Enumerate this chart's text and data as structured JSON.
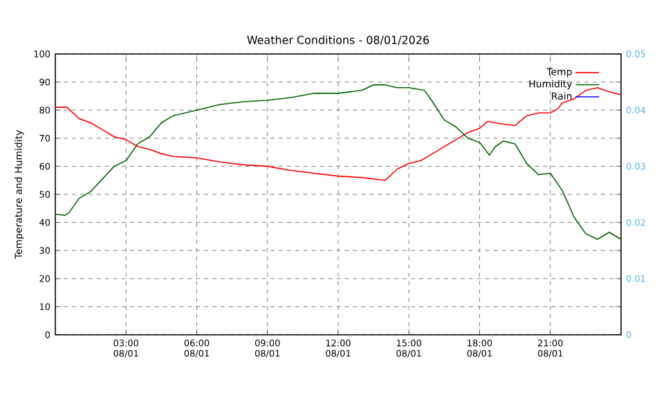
{
  "chart_data": {
    "type": "line",
    "title": "Weather Conditions - 08/01/2026",
    "ylabel": "Temperature and Humidity",
    "xlim": [
      "2026-08-01T00:00",
      "2026-08-02T00:00"
    ],
    "xticks": [
      {
        "value": "2026-08-01T03:00",
        "label": "03:00 08/01"
      },
      {
        "value": "2026-08-01T06:00",
        "label": "06:00 08/01"
      },
      {
        "value": "2026-08-01T09:00",
        "label": "09:00 08/01"
      },
      {
        "value": "2026-08-01T12:00",
        "label": "12:00 08/01"
      },
      {
        "value": "2026-08-01T15:00",
        "label": "15:00 08/01"
      },
      {
        "value": "2026-08-01T18:00",
        "label": "18:00 08/01"
      },
      {
        "value": "2026-08-01T21:00",
        "label": "21:00 08/01"
      }
    ],
    "ylim": [
      0,
      100
    ],
    "yticks": [
      0,
      10,
      20,
      30,
      40,
      50,
      60,
      70,
      80,
      90,
      100
    ],
    "y2lim": [
      0,
      0.05
    ],
    "y2ticks": [
      0,
      0.01,
      0.02,
      0.03,
      0.04,
      0.05
    ],
    "grid": true,
    "legend": "top right",
    "series": [
      {
        "name": "Temp",
        "color": "#ff0000",
        "x": [
          "2026-08-01T00:00",
          "2026-08-01T00:30",
          "2026-08-01T01:00",
          "2026-08-01T01:30",
          "2026-08-01T02:00",
          "2026-08-01T02:30",
          "2026-08-01T03:00",
          "2026-08-01T03:30",
          "2026-08-01T04:00",
          "2026-08-01T04:30",
          "2026-08-01T05:00",
          "2026-08-01T06:00",
          "2026-08-01T07:00",
          "2026-08-01T08:00",
          "2026-08-01T09:00",
          "2026-08-01T10:00",
          "2026-08-01T11:00",
          "2026-08-01T12:00",
          "2026-08-01T13:00",
          "2026-08-01T14:00",
          "2026-08-01T14:30",
          "2026-08-01T15:00",
          "2026-08-01T15:30",
          "2026-08-01T16:00",
          "2026-08-01T16:30",
          "2026-08-01T17:00",
          "2026-08-01T17:30",
          "2026-08-01T18:00",
          "2026-08-01T18:20",
          "2026-08-01T19:00",
          "2026-08-01T19:30",
          "2026-08-01T20:00",
          "2026-08-01T20:30",
          "2026-08-01T21:00",
          "2026-08-01T21:20",
          "2026-08-01T21:30",
          "2026-08-01T22:00",
          "2026-08-01T22:30",
          "2026-08-01T23:00",
          "2026-08-01T23:30",
          "2026-08-02T00:00"
        ],
        "values": [
          81,
          81,
          77,
          75.5,
          73,
          70.5,
          69.5,
          67,
          66,
          64.5,
          63.5,
          63,
          61.5,
          60.5,
          60,
          58.5,
          57.5,
          56.5,
          56,
          55,
          59,
          61,
          62,
          64.5,
          67,
          69.5,
          72,
          73.5,
          76,
          75,
          74.5,
          78,
          79,
          79,
          80.5,
          82.5,
          84,
          87,
          88,
          86.5,
          85.5
        ]
      },
      {
        "name": "Humidity",
        "color": "#006400",
        "x": [
          "2026-08-01T00:00",
          "2026-08-01T00:25",
          "2026-08-01T00:35",
          "2026-08-01T01:00",
          "2026-08-01T01:30",
          "2026-08-01T02:00",
          "2026-08-01T02:30",
          "2026-08-01T03:00",
          "2026-08-01T03:30",
          "2026-08-01T04:00",
          "2026-08-01T04:30",
          "2026-08-01T05:00",
          "2026-08-01T06:00",
          "2026-08-01T07:00",
          "2026-08-01T08:00",
          "2026-08-01T09:00",
          "2026-08-01T10:00",
          "2026-08-01T11:00",
          "2026-08-01T12:00",
          "2026-08-01T13:00",
          "2026-08-01T13:30",
          "2026-08-01T14:00",
          "2026-08-01T14:30",
          "2026-08-01T15:00",
          "2026-08-01T15:40",
          "2026-08-01T16:00",
          "2026-08-01T16:30",
          "2026-08-01T17:00",
          "2026-08-01T17:30",
          "2026-08-01T18:00",
          "2026-08-01T18:25",
          "2026-08-01T18:40",
          "2026-08-01T19:00",
          "2026-08-01T19:30",
          "2026-08-01T20:00",
          "2026-08-01T20:30",
          "2026-08-01T21:00",
          "2026-08-01T21:30",
          "2026-08-01T22:00",
          "2026-08-01T22:30",
          "2026-08-01T23:00",
          "2026-08-01T23:30",
          "2026-08-02T00:00"
        ],
        "values": [
          43,
          42.5,
          43.5,
          48.5,
          51,
          55.5,
          60,
          62,
          68,
          70.5,
          75.5,
          78,
          80,
          82,
          83,
          83.5,
          84.5,
          86,
          86,
          87,
          89,
          89,
          88,
          88,
          87,
          83,
          76.5,
          74,
          70,
          68.5,
          64,
          67,
          69,
          68,
          61,
          57,
          57.5,
          51.5,
          42,
          36,
          34,
          36.5,
          34
        ]
      },
      {
        "name": "Rain",
        "color": "#0000ff",
        "axis": "y2"
      }
    ]
  }
}
